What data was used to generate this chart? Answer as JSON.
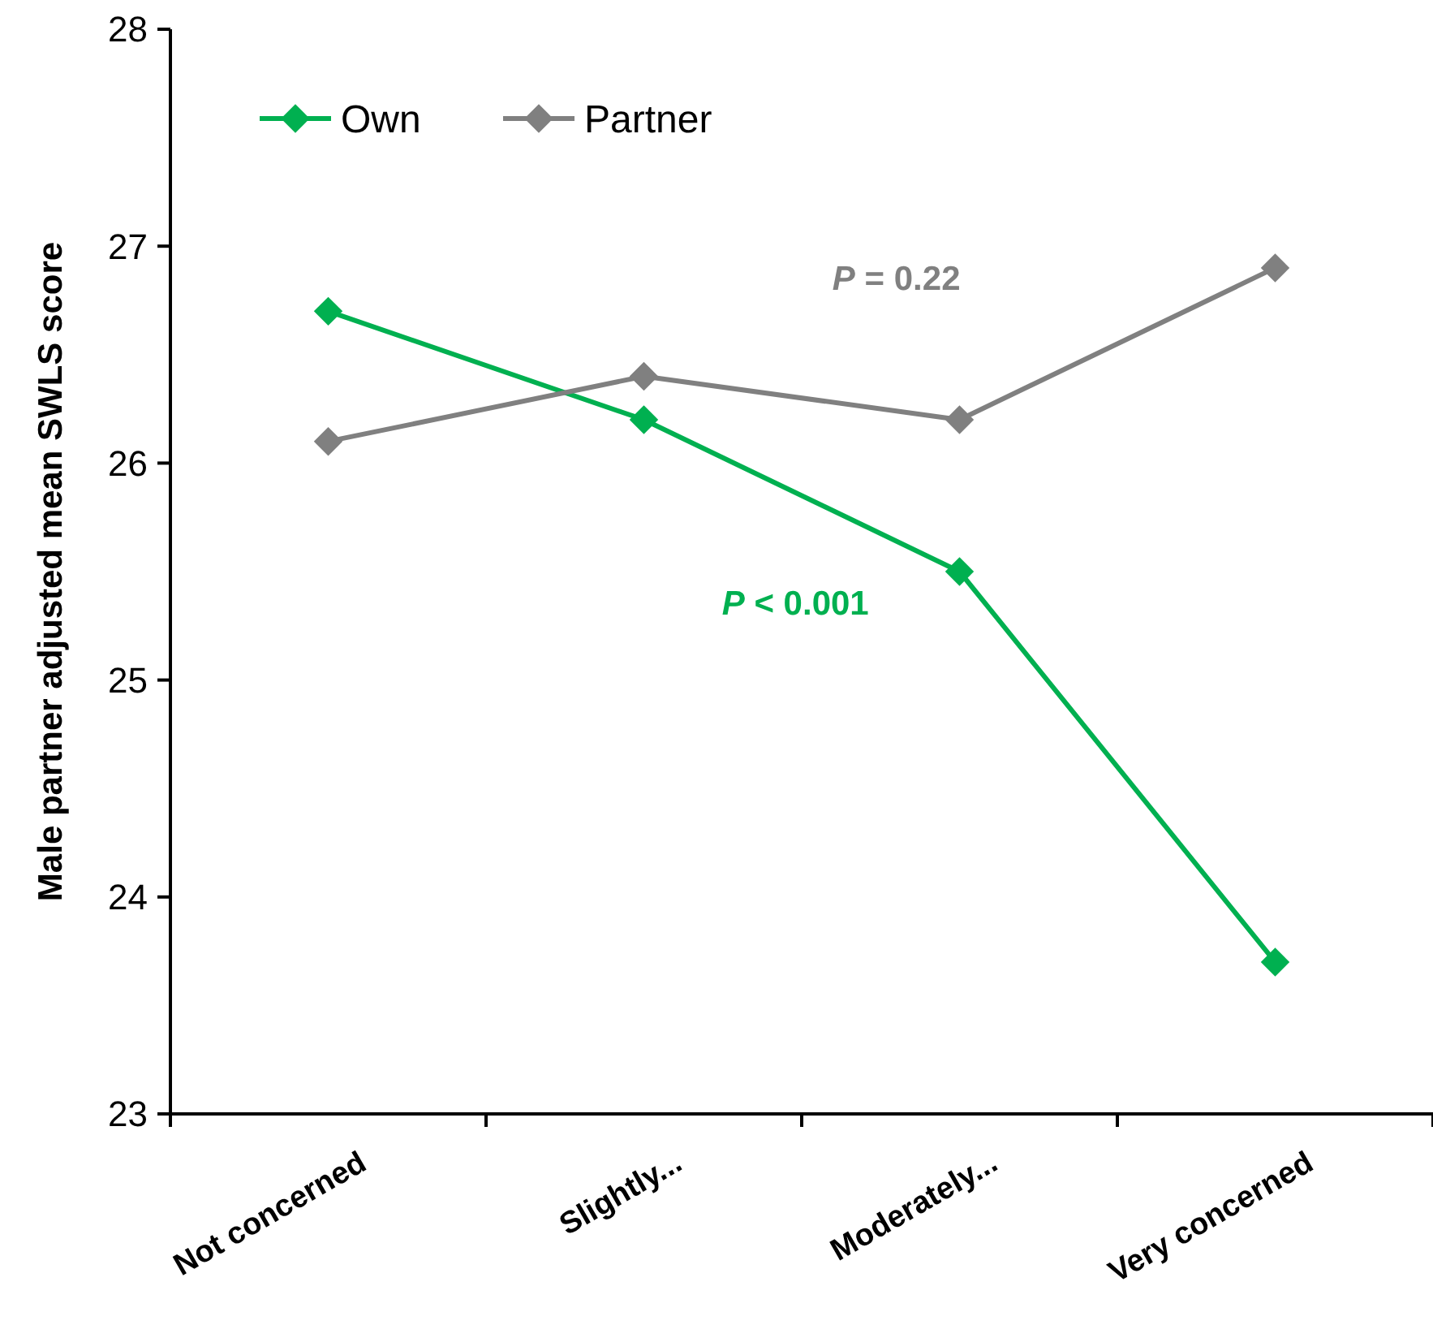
{
  "chart_data": {
    "type": "line",
    "ylabel": "Male partner adjusted mean SWLS score",
    "categories": [
      "Not concerned",
      "Slightly...",
      "Moderately...",
      "Very concerned"
    ],
    "series": [
      {
        "name": "Own",
        "color": "#00b050",
        "values": [
          26.7,
          26.2,
          25.5,
          23.7
        ]
      },
      {
        "name": "Partner",
        "color": "#808080",
        "values": [
          26.1,
          26.4,
          26.2,
          26.9
        ]
      }
    ],
    "ylim": [
      23,
      28
    ],
    "yticks": [
      23,
      24,
      25,
      26,
      27,
      28
    ],
    "marker": "diamond",
    "legend": "top left",
    "grid": false,
    "annotations": [
      "P = 0.22",
      "P < 0.001"
    ]
  }
}
